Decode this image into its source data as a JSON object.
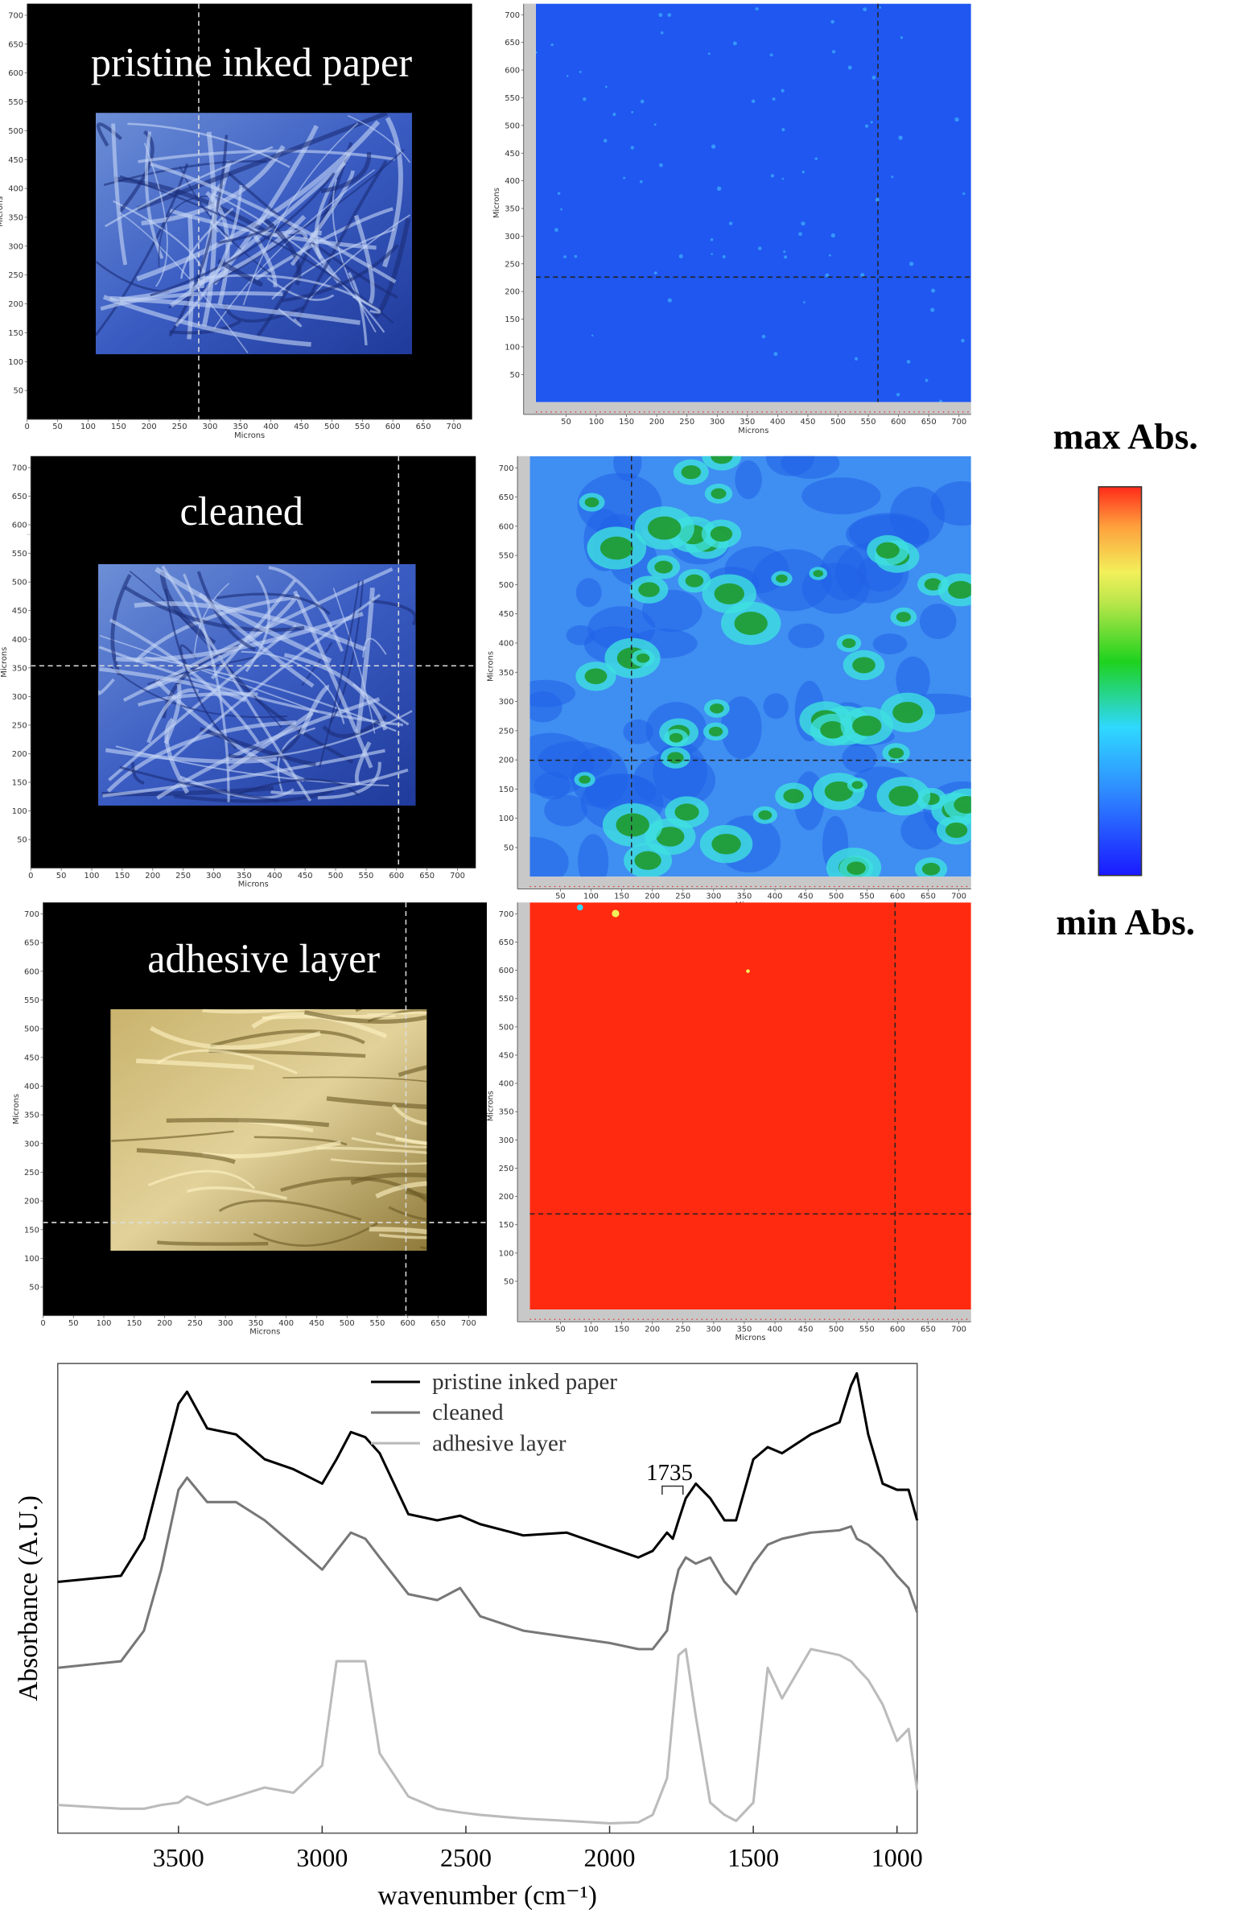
{
  "panels": [
    {
      "label": "pristine inked paper",
      "optical": {
        "xlabel": "Microns",
        "ylabel": "Microns",
        "xlim": [
          0,
          730
        ],
        "ylim": [
          0,
          720
        ],
        "xticks": [
          0,
          50,
          100,
          150,
          200,
          250,
          300,
          350,
          400,
          450,
          500,
          550,
          600,
          650,
          700
        ],
        "yticks": [
          50,
          100,
          150,
          200,
          250,
          300,
          350,
          400,
          450,
          500,
          550,
          600,
          650,
          700
        ]
      },
      "map": {
        "xlabel": "Microns",
        "ylabel": "Microns",
        "xlim": [
          0,
          720
        ],
        "ylim": [
          0,
          720
        ],
        "xticks": [
          50,
          100,
          150,
          200,
          250,
          300,
          350,
          400,
          450,
          500,
          550,
          600,
          650,
          700
        ],
        "yticks": [
          50,
          100,
          150,
          200,
          250,
          300,
          350,
          400,
          450,
          500,
          550,
          600,
          650,
          700
        ]
      }
    },
    {
      "label": "cleaned",
      "optical": {
        "xlabel": "Microns",
        "ylabel": "Microns",
        "xlim": [
          0,
          730
        ],
        "ylim": [
          0,
          720
        ],
        "xticks": [
          0,
          50,
          100,
          150,
          200,
          250,
          300,
          350,
          400,
          450,
          500,
          550,
          600,
          650,
          700
        ],
        "yticks": [
          50,
          100,
          150,
          200,
          250,
          300,
          350,
          400,
          450,
          500,
          550,
          600,
          650,
          700
        ]
      },
      "map": {
        "xlabel": "Microns",
        "ylabel": "Microns",
        "xlim": [
          0,
          720
        ],
        "ylim": [
          0,
          720
        ],
        "xticks": [
          50,
          100,
          150,
          200,
          250,
          300,
          350,
          400,
          450,
          500,
          550,
          600,
          650,
          700
        ],
        "yticks": [
          50,
          100,
          150,
          200,
          250,
          300,
          350,
          400,
          450,
          500,
          550,
          600,
          650,
          700
        ]
      }
    },
    {
      "label": "adhesive layer",
      "optical": {
        "xlabel": "Microns",
        "ylabel": "Microns",
        "xlim": [
          0,
          730
        ],
        "ylim": [
          0,
          720
        ],
        "xticks": [
          0,
          50,
          100,
          150,
          200,
          250,
          300,
          350,
          400,
          450,
          500,
          550,
          600,
          650,
          700
        ],
        "yticks": [
          50,
          100,
          150,
          200,
          250,
          300,
          350,
          400,
          450,
          500,
          550,
          600,
          650,
          700
        ]
      },
      "map": {
        "xlabel": "Microns",
        "ylabel": "Microns",
        "xlim": [
          0,
          720
        ],
        "ylim": [
          0,
          720
        ],
        "xticks": [
          50,
          100,
          150,
          200,
          250,
          300,
          350,
          400,
          450,
          500,
          550,
          600,
          650,
          700
        ],
        "yticks": [
          50,
          100,
          150,
          200,
          250,
          300,
          350,
          400,
          450,
          500,
          550,
          600,
          650,
          700
        ]
      }
    }
  ],
  "colorbar": {
    "max_label": "max Abs.",
    "min_label": "min Abs."
  },
  "chart_data": {
    "type": "line",
    "xlabel": "wavenumber (cm⁻¹)",
    "ylabel": "Absorbance (A.U.)",
    "annotation": "1735",
    "legend": "upper center",
    "xlim": [
      3920,
      930
    ],
    "ylim": [
      0,
      100
    ],
    "xticks": [
      3500,
      3000,
      2500,
      2000,
      1500,
      1000
    ],
    "x": [
      3920,
      3700,
      3620,
      3560,
      3500,
      3470,
      3400,
      3300,
      3200,
      3100,
      3000,
      2950,
      2900,
      2850,
      2800,
      2700,
      2600,
      2520,
      2450,
      2300,
      2150,
      2000,
      1900,
      1850,
      1800,
      1780,
      1760,
      1735,
      1700,
      1650,
      1600,
      1560,
      1500,
      1450,
      1400,
      1300,
      1200,
      1160,
      1140,
      1100,
      1050,
      1000,
      960,
      930
    ],
    "series": [
      {
        "name": "pristine inked paper",
        "color": "#000000",
        "values": [
          53.5,
          54.8,
          62.7,
          77.0,
          91.4,
          94.0,
          86.2,
          84.9,
          79.6,
          77.5,
          74.4,
          79.6,
          85.4,
          84.3,
          80.9,
          67.9,
          66.6,
          67.6,
          65.8,
          63.4,
          64.0,
          60.8,
          58.7,
          60.1,
          64.0,
          62.7,
          66.6,
          71.3,
          74.4,
          71.3,
          66.6,
          66.6,
          79.6,
          82.2,
          80.9,
          84.9,
          87.5,
          95.3,
          97.9,
          84.9,
          74.4,
          73.1,
          73.1,
          66.6
        ]
      },
      {
        "name": "cleaned",
        "color": "#777777",
        "values": [
          35.2,
          36.6,
          43.1,
          56.1,
          73.1,
          75.7,
          70.5,
          70.5,
          66.6,
          61.4,
          56.1,
          60.1,
          64.0,
          62.7,
          58.7,
          50.9,
          49.6,
          52.2,
          46.2,
          43.1,
          41.8,
          40.5,
          39.2,
          39.2,
          43.1,
          50.9,
          56.1,
          58.7,
          57.4,
          58.7,
          53.5,
          50.9,
          57.4,
          61.4,
          62.7,
          64.0,
          64.5,
          65.3,
          62.7,
          61.4,
          58.7,
          54.8,
          52.2,
          47.0
        ]
      },
      {
        "name": "adhesive layer",
        "color": "#bbbbbb",
        "values": [
          6.0,
          5.2,
          5.2,
          6.0,
          6.5,
          7.8,
          6.0,
          7.8,
          9.7,
          8.6,
          14.4,
          36.6,
          36.6,
          36.6,
          17.0,
          7.8,
          5.2,
          4.4,
          3.9,
          3.1,
          2.6,
          2.1,
          2.3,
          3.9,
          11.7,
          24.8,
          37.9,
          39.2,
          24.8,
          6.5,
          3.9,
          2.6,
          6.5,
          35.2,
          28.7,
          39.2,
          37.9,
          36.6,
          35.2,
          32.6,
          27.4,
          19.6,
          22.2,
          9.1
        ]
      }
    ]
  }
}
